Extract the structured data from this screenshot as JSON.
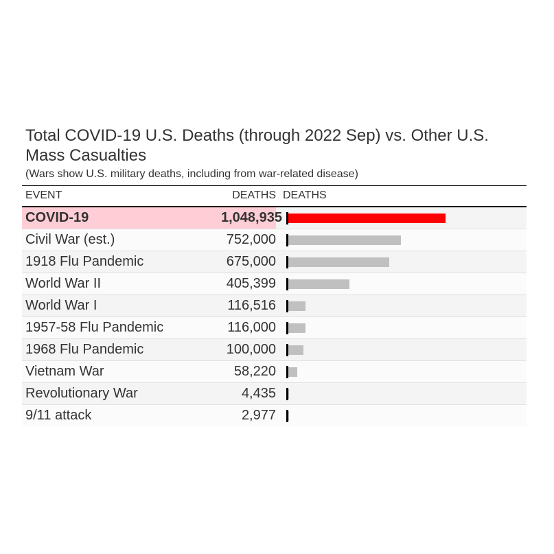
{
  "chart_data": {
    "type": "bar",
    "title": "Total COVID-19 U.S. Deaths (through 2022 Sep) vs. Other U.S. Mass Casualties",
    "subtitle": "(Wars show U.S. military deaths, including from war-related disease)",
    "columns": {
      "event": "EVENT",
      "deaths": "DEATHS",
      "bar": "DEATHS"
    },
    "highlight_color": "#ff0000",
    "highlight_row_bg": "#ffcdd5",
    "bar_color": "#c0c0c0",
    "xlim": [
      0,
      1048935
    ],
    "rows": [
      {
        "event": "COVID-19",
        "deaths": 1048935,
        "deaths_label": "1,048,935",
        "highlight": true
      },
      {
        "event": "Civil War (est.)",
        "deaths": 752000,
        "deaths_label": "752,000",
        "highlight": false
      },
      {
        "event": "1918 Flu Pandemic",
        "deaths": 675000,
        "deaths_label": "675,000",
        "highlight": false
      },
      {
        "event": "World War II",
        "deaths": 405399,
        "deaths_label": "405,399",
        "highlight": false
      },
      {
        "event": "World War I",
        "deaths": 116516,
        "deaths_label": "116,516",
        "highlight": false
      },
      {
        "event": "1957-58 Flu Pandemic",
        "deaths": 116000,
        "deaths_label": "116,000",
        "highlight": false
      },
      {
        "event": "1968 Flu Pandemic",
        "deaths": 100000,
        "deaths_label": "100,000",
        "highlight": false
      },
      {
        "event": "Vietnam War",
        "deaths": 58220,
        "deaths_label": "58,220",
        "highlight": false
      },
      {
        "event": "Revolutionary War",
        "deaths": 4435,
        "deaths_label": "4,435",
        "highlight": false
      },
      {
        "event": "9/11 attack",
        "deaths": 2977,
        "deaths_label": "2,977",
        "highlight": false
      }
    ]
  }
}
